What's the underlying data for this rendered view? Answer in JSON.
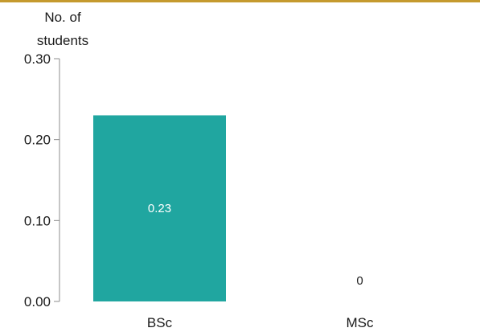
{
  "chart_data": {
    "type": "bar",
    "title": "",
    "xlabel": "",
    "ylabel_lines": [
      "No. of",
      "students"
    ],
    "categories": [
      "BSc",
      "MSc"
    ],
    "values": [
      0.23,
      0
    ],
    "value_labels": [
      "0.23",
      "0"
    ],
    "ylim": [
      0,
      0.3
    ],
    "yticks": [
      0.0,
      0.1,
      0.2,
      0.3
    ],
    "ytick_labels": [
      "0.00",
      "0.10",
      "0.20",
      "0.30"
    ],
    "grid": false,
    "legend": "none",
    "bar_color": "#20a6a0",
    "inside_label_color": "#ffffff",
    "outside_label_color": "#1a1a1a"
  },
  "style": {
    "accent_rule_color": "#c59a2e",
    "axis_color": "#8c8c8c",
    "text_color": "#1a1a1a"
  }
}
